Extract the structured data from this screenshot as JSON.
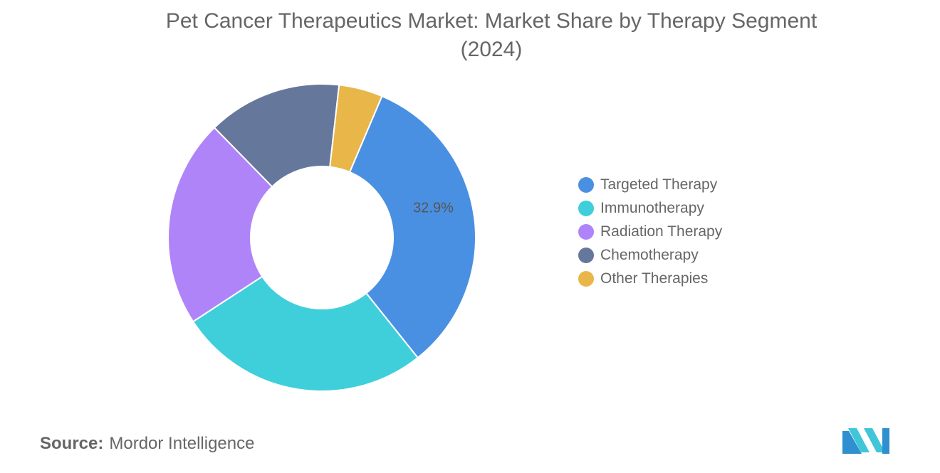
{
  "title_line1": "Pet Cancer Therapeutics Market: Market Share by Therapy Segment",
  "title_line2": "(2024)",
  "source_label": "Source:",
  "source_text": "Mordor Intelligence",
  "chart_data": {
    "type": "pie",
    "donut": true,
    "title": "Pet Cancer Therapeutics Market: Market Share by Therapy Segment (2024)",
    "legend_position": "right",
    "categories": [
      "Targeted Therapy",
      "Immunotherapy",
      "Radiation Therapy",
      "Chemotherapy",
      "Other Therapies"
    ],
    "values": [
      32.9,
      26.5,
      21.9,
      14.1,
      4.6
    ],
    "colors": [
      "#4a90e2",
      "#3fcfdb",
      "#b084f9",
      "#65779b",
      "#e9b64a"
    ],
    "data_labels": [
      "32.9%",
      "",
      "",
      "",
      ""
    ]
  }
}
